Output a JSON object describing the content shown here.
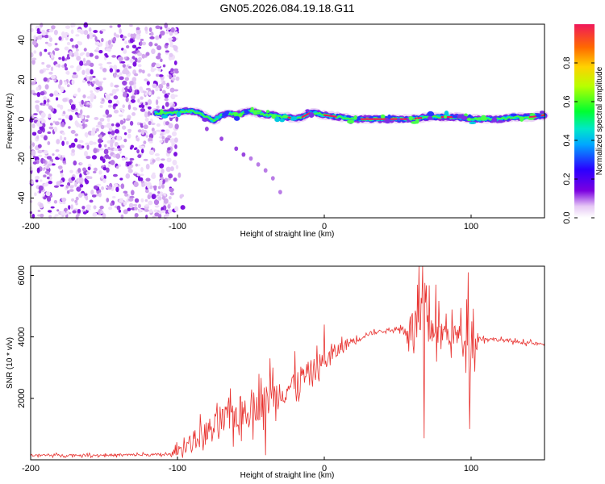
{
  "chart_data": [
    {
      "id": "top",
      "type": "heatmap",
      "title": "GN05.2026.084.19.18.G11",
      "xlabel": "Height of straight line (km)",
      "ylabel": "Frequency (Hz)",
      "xlim": [
        -200,
        150
      ],
      "ylim": [
        -50,
        48
      ],
      "xticks": [
        -200,
        -100,
        0,
        100
      ],
      "yticks": [
        -40,
        -20,
        0,
        20,
        40
      ],
      "colorbar": {
        "label": "Normalized spectral amplitude",
        "range": [
          0,
          1
        ],
        "ticks": [
          0.0,
          0.2,
          0.4,
          0.6,
          0.8
        ]
      },
      "ridge": {
        "description": "dominant frequency trace",
        "x": [
          -115,
          -105,
          -95,
          -90,
          -85,
          -80,
          -75,
          -70,
          -65,
          -60,
          -55,
          -50,
          -45,
          -40,
          -35,
          -30,
          -25,
          -20,
          -15,
          -10,
          -5,
          0,
          10,
          20,
          30,
          40,
          50,
          60,
          70,
          80,
          90,
          100,
          110,
          120,
          130,
          140,
          150
        ],
        "y": [
          3,
          3,
          4,
          4,
          3,
          1,
          -1,
          2,
          3,
          2,
          3,
          4,
          3,
          2,
          2,
          1,
          1,
          0,
          1,
          3,
          3,
          2,
          1,
          0,
          0,
          0,
          0,
          0,
          1,
          1,
          1,
          0,
          0,
          0,
          1,
          1,
          2
        ]
      },
      "branch": {
        "description": "secondary descending trace",
        "x": [
          -80,
          -70,
          -60,
          -55,
          -50,
          -45,
          -40,
          -35,
          -30
        ],
        "y": [
          -5,
          -10,
          -15,
          -18,
          -20,
          -23,
          -26,
          -30,
          -37
        ]
      },
      "noise_region": [
        -200,
        -100
      ]
    },
    {
      "id": "bottom",
      "type": "line",
      "xlabel": "Height of straight line (km)",
      "ylabel": "SNR (10 * v/v)",
      "xlim": [
        -200,
        150
      ],
      "ylim": [
        0,
        6300
      ],
      "xticks": [
        -200,
        -100,
        0,
        100
      ],
      "yticks": [
        2000,
        4000,
        6000
      ],
      "series": [
        {
          "name": "SNR",
          "color": "#e8322f",
          "envelope": {
            "x": [
              -200,
              -150,
              -105,
              -100,
              -90,
              -80,
              -70,
              -60,
              -50,
              -40,
              -30,
              -20,
              -10,
              0,
              10,
              20,
              30,
              40,
              50,
              55,
              60,
              65,
              70,
              75,
              80,
              85,
              90,
              95,
              100,
              105,
              110,
              120,
              130,
              140,
              150
            ],
            "y": [
              150,
              150,
              170,
              300,
              600,
              900,
              1200,
              1500,
              1700,
              1900,
              2200,
              2500,
              2800,
              3200,
              3600,
              3900,
              4100,
              4200,
              4250,
              4250,
              4300,
              4400,
              4400,
              4200,
              4150,
              4100,
              4050,
              4000,
              4000,
              3950,
              3950,
              3900,
              3850,
              3800,
              3750
            ],
            "amp": [
              60,
              60,
              80,
              250,
              500,
              700,
              800,
              900,
              900,
              900,
              850,
              800,
              700,
              600,
              400,
              250,
              120,
              80,
              80,
              400,
              1000,
              1600,
              1200,
              900,
              800,
              700,
              600,
              900,
              1500,
              300,
              100,
              90,
              90,
              90,
              90
            ]
          },
          "spikes": [
            {
              "x": 67,
              "y": 6300
            },
            {
              "x": 68,
              "y": 700
            },
            {
              "x": 76,
              "y": 5700
            },
            {
              "x": 98,
              "y": 6100
            },
            {
              "x": 99,
              "y": 1000
            },
            {
              "x": 0,
              "y": 4400
            },
            {
              "x": -35,
              "y": 3000
            },
            {
              "x": -37,
              "y": 3300
            },
            {
              "x": -40,
              "y": 150
            }
          ]
        }
      ]
    }
  ]
}
